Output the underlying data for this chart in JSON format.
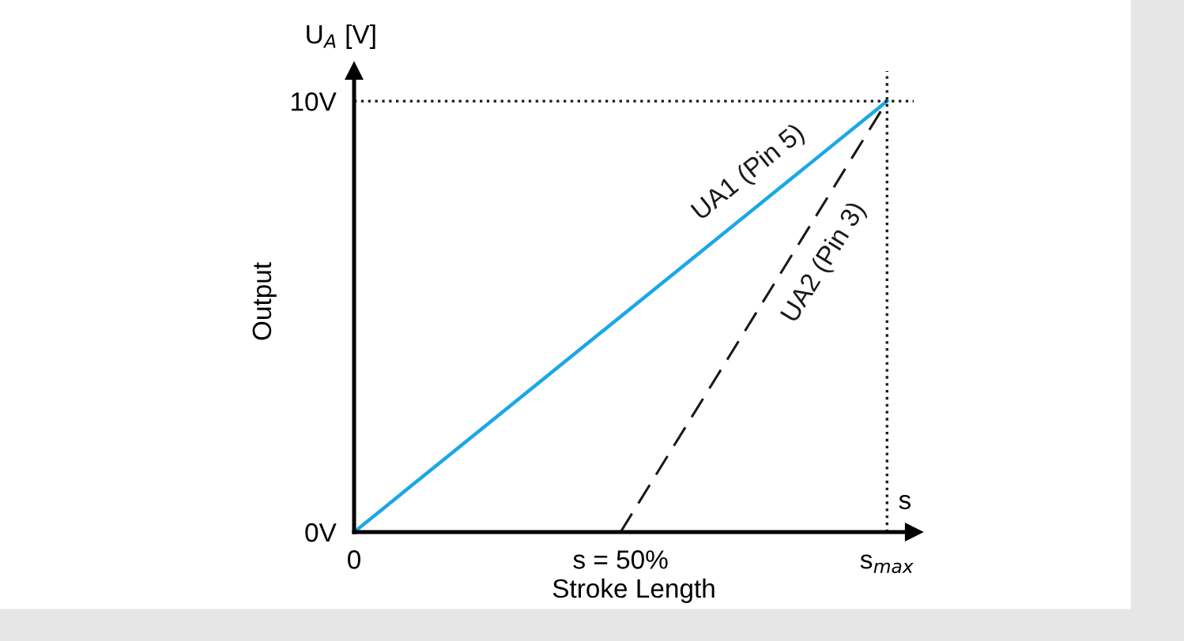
{
  "chart_data": {
    "type": "line",
    "xlabel": "Stroke Length",
    "ylabel": "Output",
    "x": [
      0,
      100
    ],
    "series": [
      {
        "name": "UA1 (Pin 5)",
        "color": "#1aa7e8",
        "values": [
          0,
          10
        ],
        "line_style": "solid"
      },
      {
        "name": "UA2 (Pin 3)",
        "color": "#1a1a1a",
        "x": [
          50,
          100
        ],
        "values": [
          0,
          10
        ],
        "line_style": "dashed"
      }
    ],
    "xlim": [
      0,
      105
    ],
    "ylim": [
      0,
      10.7
    ],
    "xticks": [
      0,
      {
        "value": 50,
        "label": "s = 50%"
      },
      {
        "value": 100,
        "label": "s$_{max}$"
      }
    ],
    "yticks": [
      {
        "value": 0,
        "label": "0V"
      },
      {
        "value": 10,
        "label": "10V"
      }
    ],
    "ref_lines": [
      {
        "axis": "y",
        "value": 10,
        "line_style": "dotted",
        "color": "#1a1a1a"
      },
      {
        "axis": "x",
        "value": 100,
        "line_style": "dotted",
        "color": "#1a1a1a"
      }
    ],
    "annotations": [
      "U$_{A}$ [V]",
      "s"
    ],
    "grid": false,
    "legend": false
  }
}
